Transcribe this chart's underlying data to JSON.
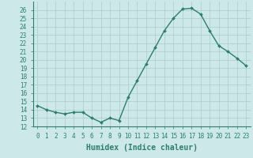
{
  "x": [
    0,
    1,
    2,
    3,
    4,
    5,
    6,
    7,
    8,
    9,
    10,
    11,
    12,
    13,
    14,
    15,
    16,
    17,
    18,
    19,
    20,
    21,
    22,
    23
  ],
  "y": [
    14.5,
    14.0,
    13.7,
    13.5,
    13.7,
    13.7,
    13.0,
    12.5,
    13.0,
    12.7,
    15.5,
    17.5,
    19.5,
    21.5,
    23.5,
    25.0,
    26.1,
    26.2,
    25.5,
    23.5,
    21.7,
    21.0,
    20.2,
    19.3
  ],
  "line_color": "#2e7d6e",
  "marker": "D",
  "marker_size": 2,
  "bg_color": "#cce8e8",
  "grid_color": "#aacccc",
  "xlabel": "Humidex (Indice chaleur)",
  "ylim": [
    12,
    27
  ],
  "xlim": [
    -0.5,
    23.5
  ],
  "yticks": [
    12,
    13,
    14,
    15,
    16,
    17,
    18,
    19,
    20,
    21,
    22,
    23,
    24,
    25,
    26
  ],
  "xticks": [
    0,
    1,
    2,
    3,
    4,
    5,
    6,
    7,
    8,
    9,
    10,
    11,
    12,
    13,
    14,
    15,
    16,
    17,
    18,
    19,
    20,
    21,
    22,
    23
  ],
  "xlabel_fontsize": 7,
  "tick_fontsize": 5.5,
  "line_width": 1.0
}
